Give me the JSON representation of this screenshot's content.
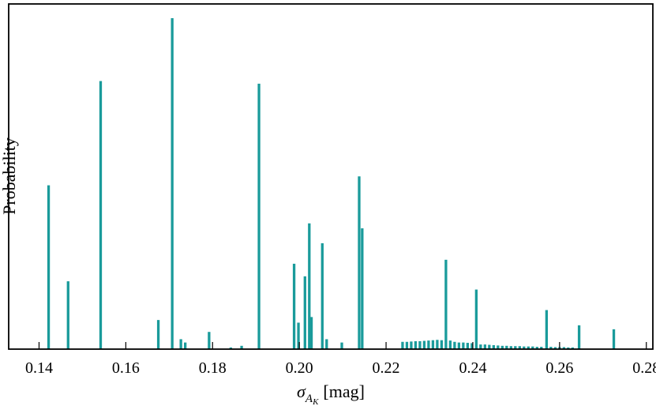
{
  "chart_data": {
    "type": "bar",
    "xlabel_sigma": "σ",
    "xlabel_sub": "A",
    "xlabel_subsub": "K",
    "xlabel_unit": "[mag]",
    "ylabel": "Probability",
    "xlim": [
      0.133,
      0.2815
    ],
    "ylim": [
      0,
      1.0
    ],
    "xticks": [
      "0.14",
      "0.16",
      "0.18",
      "0.20",
      "0.22",
      "0.24",
      "0.26",
      "0.28"
    ],
    "yticks_shown": false,
    "bar_color": "#1a9b9b",
    "bar_width": 0.0006,
    "x": [
      0.1422,
      0.1467,
      0.1542,
      0.1675,
      0.1707,
      0.1727,
      0.1737,
      0.1792,
      0.1842,
      0.1867,
      0.1907,
      0.1988,
      0.1998,
      0.2013,
      0.2023,
      0.2028,
      0.2053,
      0.2063,
      0.2098,
      0.2138,
      0.2145,
      0.2238,
      0.2248,
      0.2258,
      0.2268,
      0.2278,
      0.2288,
      0.2298,
      0.2308,
      0.2318,
      0.2328,
      0.2338,
      0.2348,
      0.2358,
      0.2368,
      0.2378,
      0.2388,
      0.2398,
      0.2408,
      0.2418,
      0.2428,
      0.2438,
      0.2448,
      0.2458,
      0.2468,
      0.2478,
      0.2488,
      0.2498,
      0.2508,
      0.2518,
      0.2528,
      0.2538,
      0.2548,
      0.2558,
      0.257,
      0.258,
      0.259,
      0.26,
      0.261,
      0.262,
      0.263,
      0.2645,
      0.2725
    ],
    "values": [
      0.495,
      0.205,
      0.81,
      0.088,
      1.0,
      0.03,
      0.02,
      0.052,
      0.005,
      0.01,
      0.802,
      0.258,
      0.08,
      0.22,
      0.38,
      0.097,
      0.32,
      0.03,
      0.02,
      0.522,
      0.365,
      0.022,
      0.022,
      0.023,
      0.024,
      0.024,
      0.025,
      0.026,
      0.027,
      0.028,
      0.027,
      0.27,
      0.026,
      0.022,
      0.02,
      0.02,
      0.019,
      0.018,
      0.18,
      0.014,
      0.014,
      0.013,
      0.012,
      0.011,
      0.01,
      0.01,
      0.009,
      0.009,
      0.009,
      0.008,
      0.008,
      0.008,
      0.007,
      0.007,
      0.118,
      0.007,
      0.006,
      0.006,
      0.006,
      0.005,
      0.005,
      0.072,
      0.06
    ]
  }
}
